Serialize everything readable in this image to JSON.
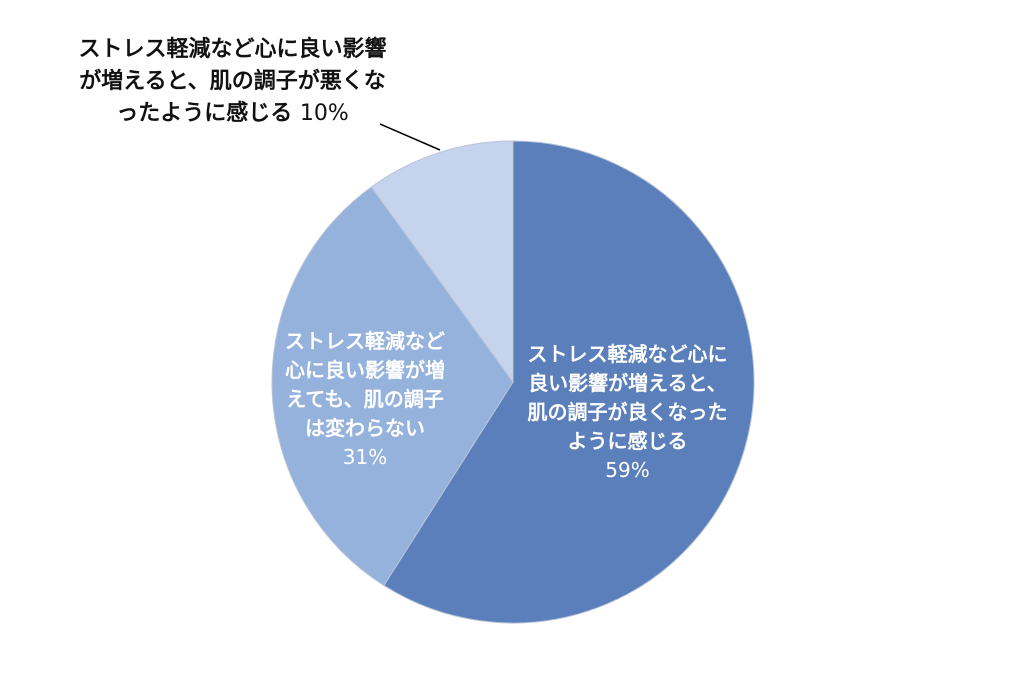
{
  "chart_data": {
    "type": "pie",
    "categories": [
      "ストレス軽減など心に良い影響が増えると、肌の調子が良くなったように感じる",
      "ストレス軽減など心に良い影響が増えても、肌の調子は変わらない",
      "ストレス軽減など心に良い影響が増えると、肌の調子が悪くなったように感じる"
    ],
    "values": [
      59,
      31,
      10
    ],
    "value_labels": [
      "59%",
      "31%",
      "10%"
    ],
    "colors": [
      "#5b7fba",
      "#95b2dc",
      "#c5d4ec"
    ]
  }
}
